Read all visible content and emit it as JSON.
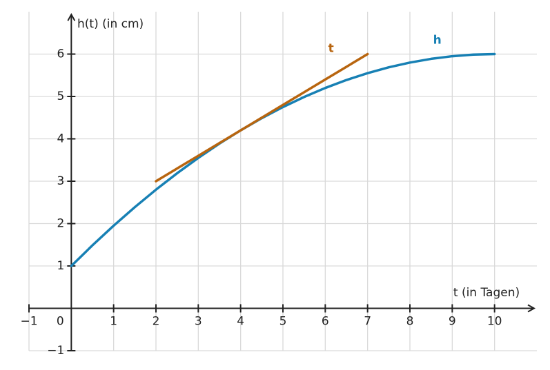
{
  "chart_data": {
    "type": "line",
    "x_label": "t (in Tagen)",
    "y_label": "h(t) (in cm)",
    "xlim": [
      -1,
      11
    ],
    "ylim": [
      -1,
      7
    ],
    "xticks": [
      {
        "value": -1,
        "label": "−1"
      },
      0,
      1,
      2,
      3,
      4,
      5,
      6,
      7,
      8,
      9,
      10
    ],
    "yticks": [
      {
        "value": -1,
        "label": "−1"
      },
      1,
      2,
      3,
      4,
      5,
      6
    ],
    "grid": true,
    "x": [
      0,
      0.5,
      1,
      1.5,
      2,
      2.5,
      3,
      3.5,
      4,
      4.5,
      5,
      5.5,
      6,
      6.5,
      7,
      7.5,
      8,
      8.5,
      9,
      9.5,
      10
    ],
    "series": [
      {
        "name": "h",
        "color": "#1780b4",
        "values": [
          1,
          1.4875,
          1.95,
          2.3875,
          2.8,
          3.1875,
          3.55,
          3.8875,
          4.2,
          4.4875,
          4.75,
          4.9875,
          5.2,
          5.3875,
          5.55,
          5.6875,
          5.8,
          5.8875,
          5.95,
          5.9875,
          6
        ]
      },
      {
        "name": "t",
        "color": "#b8650f",
        "values": [
          null,
          null,
          null,
          null,
          3,
          3.3,
          3.6,
          3.9,
          4.2,
          4.5,
          4.8,
          5.1,
          5.4,
          5.7,
          6,
          null,
          null,
          null,
          null,
          null,
          null
        ]
      }
    ]
  }
}
